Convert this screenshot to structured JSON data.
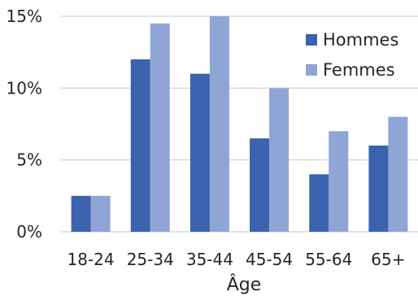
{
  "chart_data": {
    "type": "bar",
    "categories": [
      "18-24",
      "25-34",
      "35-44",
      "45-54",
      "55-64",
      "65+"
    ],
    "series": [
      {
        "name": "Hommes",
        "values": [
          2.5,
          12,
          11,
          6.5,
          4,
          6
        ]
      },
      {
        "name": "Femmes",
        "values": [
          2.5,
          14.5,
          15,
          10,
          7,
          8
        ]
      }
    ],
    "xlabel": "Âge",
    "ylabel": "",
    "ylim": [
      0,
      15
    ],
    "yticks": [
      0,
      5,
      10,
      15
    ],
    "ytick_labels": [
      "0%",
      "5%",
      "10%",
      "15%"
    ],
    "grid": "horizontal",
    "legend_position": "top-right",
    "colors": {
      "Hommes": "#3b62ad",
      "Femmes": "#8fa5d6",
      "grid": "#d9d9d9"
    }
  }
}
